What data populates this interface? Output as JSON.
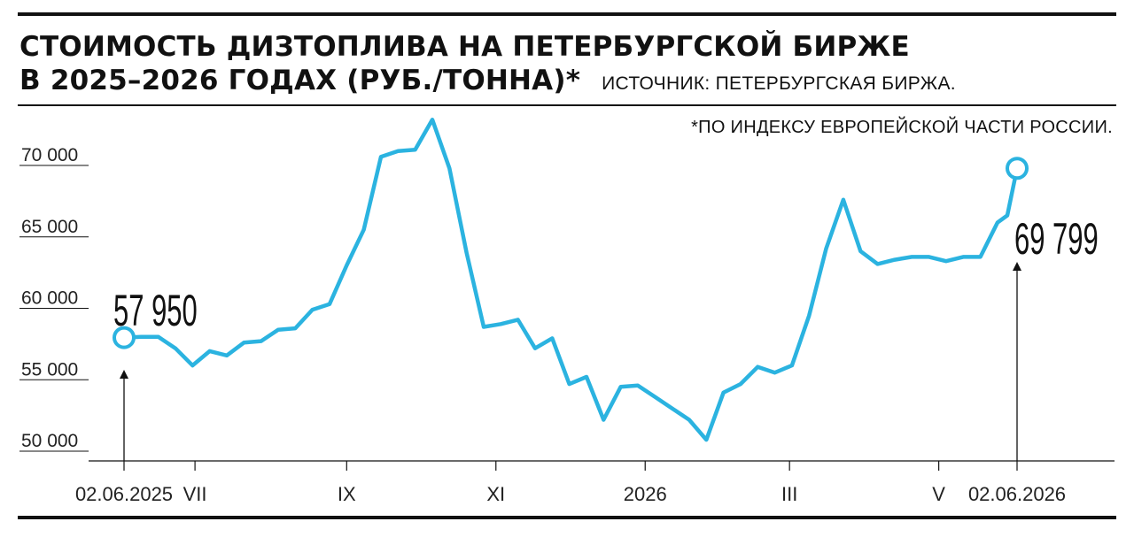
{
  "header": {
    "title_line1": "СТОИМОСТЬ ДИЗТОПЛИВА НА ПЕТЕРБУРГСКОЙ БИРЖЕ",
    "title_line2": "В 2025–2026 ГОДАХ (РУБ./ТОННА)*",
    "source": "ИСТОЧНИК: ПЕТЕРБУРГСКАЯ БИРЖА.",
    "footnote": "*ПО ИНДЕКСУ ЕВРОПЕЙСКОЙ ЧАСТИ РОССИИ."
  },
  "colors": {
    "line": "#2bb3e0",
    "axis": "#111111"
  },
  "chart_data": {
    "type": "line",
    "title": "СТОИМОСТЬ ДИЗТОПЛИВА НА ПЕТЕРБУРГСКОЙ БИРЖЕ В 2025–2026 ГОДАХ (РУБ./ТОННА)*",
    "xlabel": "",
    "ylabel": "",
    "xlim": [
      "2025-06-02",
      "2026-06-02"
    ],
    "ylim": [
      50000,
      72000
    ],
    "y_ticks": [
      {
        "value": 50000,
        "label": "50 000"
      },
      {
        "value": 55000,
        "label": "55 000"
      },
      {
        "value": 60000,
        "label": "60 000"
      },
      {
        "value": 65000,
        "label": "65 000"
      },
      {
        "value": 70000,
        "label": "70 000"
      }
    ],
    "x_ticks": [
      {
        "date": "2025-06-02",
        "label": "02.06.2025"
      },
      {
        "date": "2025-07-01",
        "label": "VII"
      },
      {
        "date": "2025-09-01",
        "label": "IX"
      },
      {
        "date": "2025-11-01",
        "label": "XI"
      },
      {
        "date": "2026-01-01",
        "label": "2026"
      },
      {
        "date": "2026-03-01",
        "label": "III"
      },
      {
        "date": "2026-05-01",
        "label": "V"
      },
      {
        "date": "2026-06-02",
        "label": "02.06.2026"
      }
    ],
    "grid": false,
    "series": [
      {
        "points": [
          [
            "2025-06-02",
            57950
          ],
          [
            "2025-06-09",
            58000
          ],
          [
            "2025-06-16",
            58000
          ],
          [
            "2025-06-23",
            57200
          ],
          [
            "2025-06-30",
            56000
          ],
          [
            "2025-07-07",
            57000
          ],
          [
            "2025-07-14",
            56700
          ],
          [
            "2025-07-21",
            57600
          ],
          [
            "2025-07-28",
            57700
          ],
          [
            "2025-08-04",
            58500
          ],
          [
            "2025-08-11",
            58600
          ],
          [
            "2025-08-18",
            59900
          ],
          [
            "2025-08-25",
            60300
          ],
          [
            "2025-09-01",
            63000
          ],
          [
            "2025-09-08",
            65500
          ],
          [
            "2025-09-15",
            70600
          ],
          [
            "2025-09-22",
            71000
          ],
          [
            "2025-09-29",
            71100
          ],
          [
            "2025-10-06",
            73200
          ],
          [
            "2025-10-13",
            69800
          ],
          [
            "2025-10-20",
            63900
          ],
          [
            "2025-10-27",
            58700
          ],
          [
            "2025-11-03",
            58900
          ],
          [
            "2025-11-10",
            59200
          ],
          [
            "2025-11-17",
            57200
          ],
          [
            "2025-11-24",
            57900
          ],
          [
            "2025-12-01",
            54700
          ],
          [
            "2025-12-08",
            55200
          ],
          [
            "2025-12-15",
            52200
          ],
          [
            "2025-12-22",
            54500
          ],
          [
            "2025-12-29",
            54600
          ],
          [
            "2026-01-05",
            53800
          ],
          [
            "2026-01-12",
            53000
          ],
          [
            "2026-01-19",
            52200
          ],
          [
            "2026-01-26",
            50800
          ],
          [
            "2026-02-02",
            54100
          ],
          [
            "2026-02-09",
            54700
          ],
          [
            "2026-02-16",
            55900
          ],
          [
            "2026-02-23",
            55500
          ],
          [
            "2026-03-02",
            56000
          ],
          [
            "2026-03-09",
            59500
          ],
          [
            "2026-03-16",
            64200
          ],
          [
            "2026-03-23",
            67600
          ],
          [
            "2026-03-30",
            64000
          ],
          [
            "2026-04-06",
            63100
          ],
          [
            "2026-04-13",
            63400
          ],
          [
            "2026-04-20",
            63600
          ],
          [
            "2026-04-27",
            63600
          ],
          [
            "2026-05-04",
            63300
          ],
          [
            "2026-05-11",
            63600
          ],
          [
            "2026-05-18",
            63600
          ],
          [
            "2026-05-25",
            66000
          ],
          [
            "2026-05-29",
            66500
          ],
          [
            "2026-06-02",
            69799
          ]
        ]
      }
    ],
    "annotations": [
      {
        "date": "2025-06-02",
        "value": 57950,
        "label": "57 950"
      },
      {
        "date": "2026-06-02",
        "value": 69799,
        "label": "69 799"
      }
    ]
  }
}
